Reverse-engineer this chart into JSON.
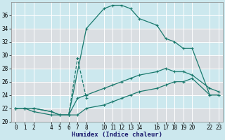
{
  "xlabel": "Humidex (Indice chaleur)",
  "background_color": "#cce8ee",
  "grid_color": "#ffffff",
  "line_color": "#1a7a6e",
  "ylim": [
    20,
    38
  ],
  "xlim": [
    -0.5,
    23.5
  ],
  "yticks": [
    20,
    22,
    24,
    26,
    28,
    30,
    32,
    34,
    36
  ],
  "xticks": [
    0,
    1,
    2,
    4,
    5,
    6,
    7,
    8,
    10,
    11,
    12,
    13,
    14,
    16,
    17,
    18,
    19,
    20,
    22,
    23
  ],
  "curve1_x": [
    0,
    1,
    2,
    4,
    5,
    6,
    8,
    10,
    11,
    12,
    13,
    14,
    16,
    17,
    18,
    19,
    20,
    22,
    23
  ],
  "curve1_y": [
    22,
    22,
    21.5,
    21,
    21,
    21,
    34,
    37,
    37.5,
    37.5,
    37,
    35.5,
    34.5,
    32.5,
    32,
    31,
    31,
    24,
    24
  ],
  "curve2_x": [
    0,
    1,
    2,
    4,
    5,
    6,
    7,
    8,
    10,
    11,
    12,
    13,
    14,
    16,
    17,
    18,
    19,
    20,
    22,
    23
  ],
  "curve2_y": [
    22,
    22,
    22,
    21.5,
    21,
    21,
    23.5,
    24,
    25,
    25.5,
    26,
    26.5,
    27,
    27.5,
    28,
    27.5,
    27.5,
    27,
    25,
    24.5
  ],
  "curve3_x": [
    0,
    1,
    2,
    4,
    5,
    6,
    7,
    8,
    10,
    11,
    12,
    13,
    14,
    16,
    17,
    18,
    19,
    20,
    22,
    23
  ],
  "curve3_y": [
    22,
    22,
    22,
    21.5,
    21,
    21,
    21,
    22,
    22.5,
    23,
    23.5,
    24,
    24.5,
    25,
    25.5,
    26,
    26,
    26.5,
    24,
    24
  ],
  "curve4_x": [
    6,
    7,
    8
  ],
  "curve4_y": [
    21,
    29.5,
    23.5
  ],
  "pink_grid_color": "#f0d0d0"
}
